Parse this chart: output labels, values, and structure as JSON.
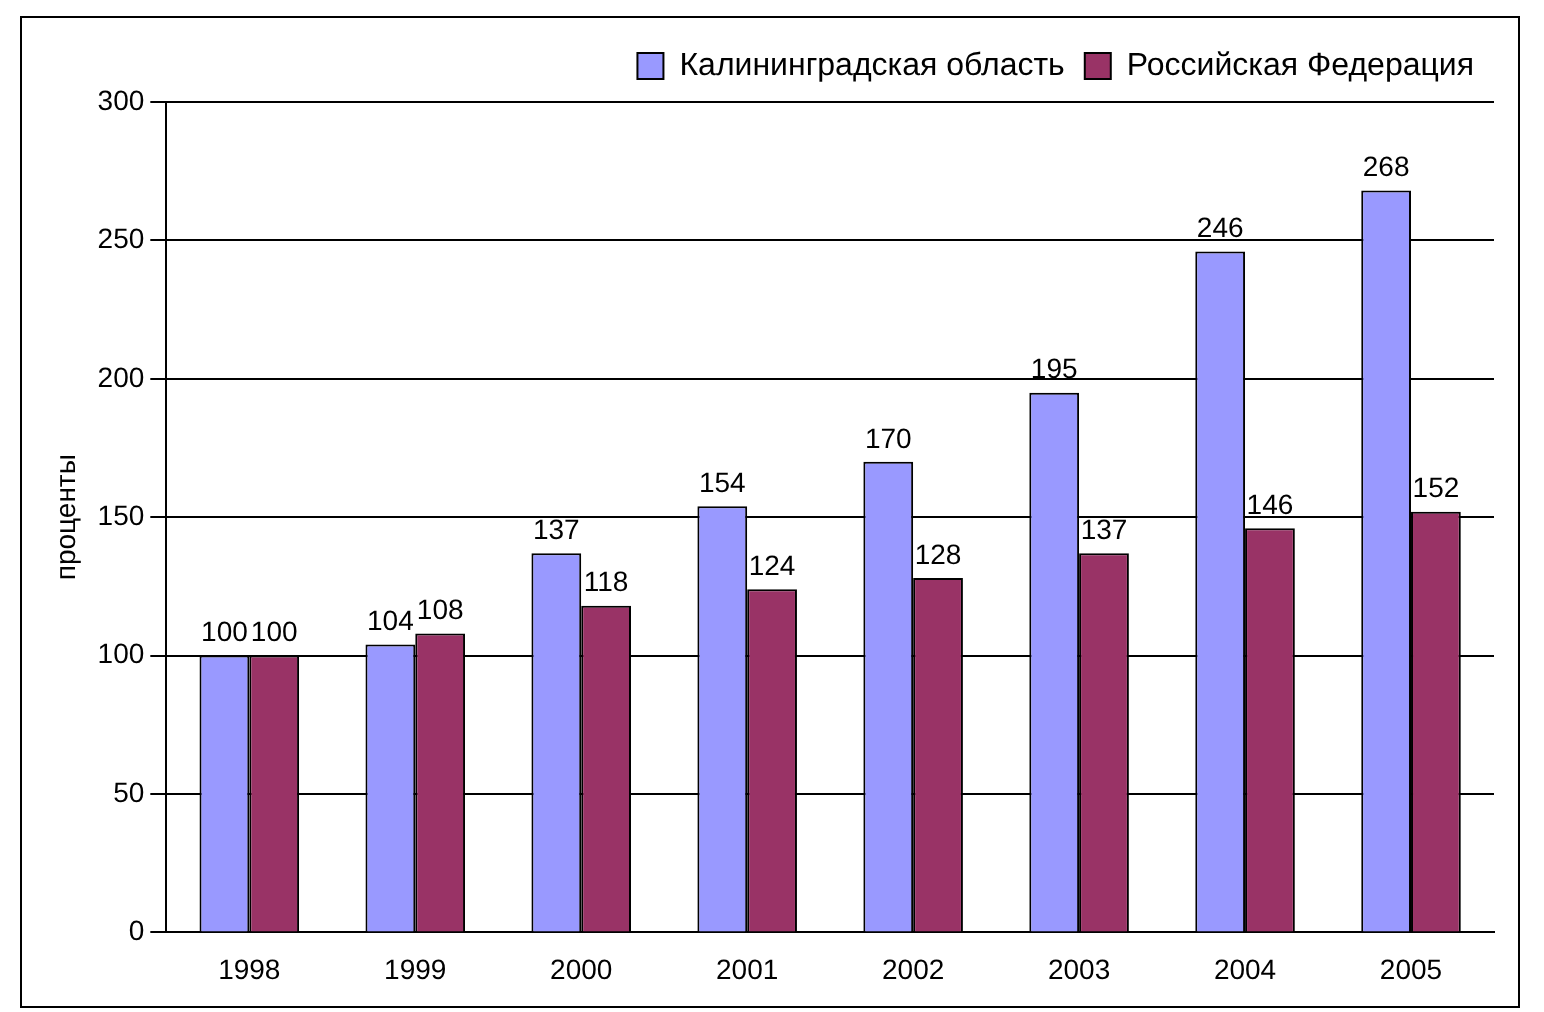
{
  "chart_data": {
    "type": "bar",
    "ylabel": "проценты",
    "categories": [
      "1998",
      "1999",
      "2000",
      "2001",
      "2002",
      "2003",
      "2004",
      "2005"
    ],
    "series": [
      {
        "name": "Калининградская область",
        "color": "#9999ff",
        "values": [
          100,
          104,
          137,
          154,
          170,
          195,
          246,
          268
        ]
      },
      {
        "name": "Российская Федерация",
        "color": "#993366",
        "values": [
          100,
          108,
          118,
          124,
          128,
          137,
          146,
          152
        ]
      }
    ],
    "ylim": [
      0,
      300
    ],
    "yticks": [
      0,
      50,
      100,
      150,
      200,
      250,
      300
    ],
    "grid": "y",
    "legend": "top",
    "data_labels": true
  }
}
